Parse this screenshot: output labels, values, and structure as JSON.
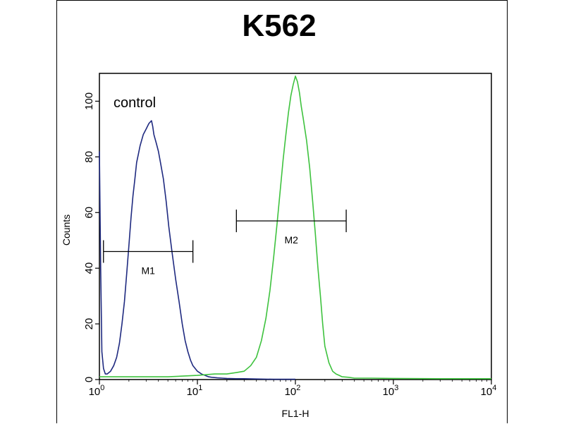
{
  "chart_data": {
    "type": "line",
    "title": "K562",
    "xlabel": "FL1-H",
    "ylabel": "Counts",
    "x_scale": "log",
    "xlim": [
      1,
      10000
    ],
    "ylim": [
      0,
      110
    ],
    "x_ticks": [
      {
        "base": "10",
        "exp": "0",
        "value": 1
      },
      {
        "base": "10",
        "exp": "1",
        "value": 10
      },
      {
        "base": "10",
        "exp": "2",
        "value": 100
      },
      {
        "base": "10",
        "exp": "3",
        "value": 1000
      },
      {
        "base": "10",
        "exp": "4",
        "value": 10000
      }
    ],
    "y_ticks": [
      0,
      20,
      40,
      60,
      80,
      100
    ],
    "annotation": "control",
    "gates": [
      {
        "name": "M1",
        "x_start": 1.1,
        "x_end": 9.0,
        "y": 46
      },
      {
        "name": "M2",
        "x_start": 25,
        "x_end": 330,
        "y": 57
      }
    ],
    "series": [
      {
        "color": "#1f2a80",
        "x": [
          1.0,
          1.03,
          1.06,
          1.1,
          1.15,
          1.2,
          1.3,
          1.4,
          1.5,
          1.6,
          1.7,
          1.8,
          1.9,
          2.0,
          2.1,
          2.2,
          2.3,
          2.4,
          2.5,
          2.6,
          2.8,
          3.0,
          3.2,
          3.4,
          3.5,
          3.6,
          3.8,
          4.0,
          4.2,
          4.5,
          4.8,
          5.1,
          5.5,
          6.0,
          6.5,
          7.0,
          7.5,
          8.0,
          8.5,
          9.0,
          10,
          11,
          12,
          13,
          14,
          16,
          18,
          20,
          25,
          30,
          40,
          60,
          100
        ],
        "values": [
          82,
          40,
          10,
          4,
          2,
          2,
          3,
          5,
          8,
          13,
          20,
          28,
          38,
          48,
          58,
          66,
          72,
          78,
          81,
          84,
          88,
          90,
          92,
          93,
          91,
          88,
          85,
          82,
          78,
          72,
          64,
          55,
          46,
          36,
          28,
          20,
          14,
          10,
          7,
          5,
          3,
          2,
          1.5,
          1,
          0.8,
          0.6,
          0.5,
          0.4,
          0.3,
          0.3,
          0.2,
          0.1,
          0.1
        ]
      },
      {
        "color": "#3ec23e",
        "x": [
          1.0,
          2,
          5,
          10,
          15,
          20,
          25,
          30,
          35,
          40,
          45,
          50,
          55,
          60,
          65,
          70,
          75,
          80,
          85,
          90,
          95,
          100,
          105,
          110,
          115,
          120,
          130,
          140,
          150,
          160,
          170,
          180,
          190,
          200,
          220,
          240,
          260,
          280,
          300,
          350,
          400,
          600,
          1000,
          3000,
          10000
        ],
        "values": [
          1,
          1,
          1,
          1.5,
          2,
          2,
          2.5,
          3,
          5,
          8,
          14,
          22,
          32,
          44,
          56,
          68,
          79,
          88,
          96,
          102,
          106,
          109,
          107,
          103,
          98,
          94,
          86,
          76,
          64,
          52,
          40,
          30,
          20,
          12,
          6,
          3,
          2,
          1.5,
          1,
          0.8,
          0.5,
          0.5,
          0.4,
          0.3,
          0.3
        ]
      }
    ]
  }
}
